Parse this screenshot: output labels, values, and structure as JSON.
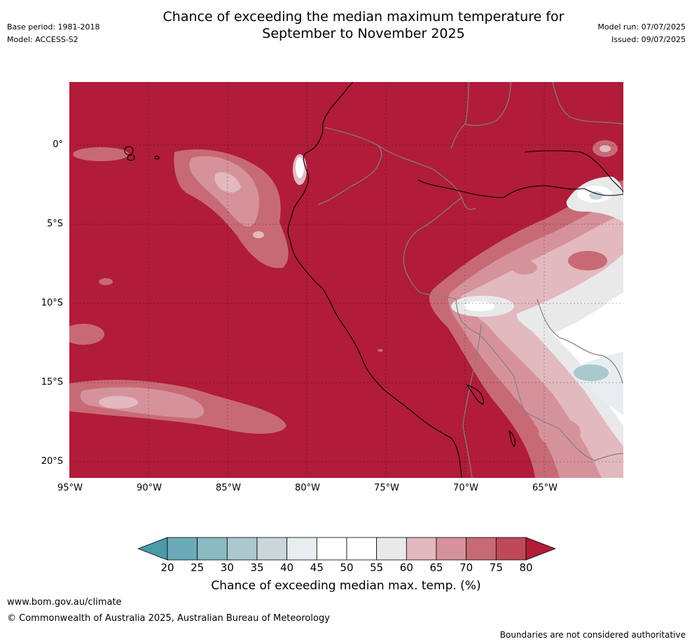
{
  "title_line1": "Chance of exceeding the median maximum temperature for",
  "title_line2": "September to November 2025",
  "meta_left": {
    "base_period": "Base period: 1981-2018",
    "model": "Model: ACCESS-S2"
  },
  "meta_right": {
    "model_run": "Model run: 07/07/2025",
    "issued": "Issued: 09/07/2025"
  },
  "lat_ticks": [
    "0°",
    "5°S",
    "10°S",
    "15°S",
    "20°S"
  ],
  "lon_ticks": [
    "95°W",
    "90°W",
    "85°W",
    "80°W",
    "75°W",
    "70°W",
    "65°W"
  ],
  "colorbar": {
    "ticks": [
      "20",
      "25",
      "30",
      "35",
      "40",
      "45",
      "50",
      "55",
      "60",
      "65",
      "70",
      "75",
      "80"
    ],
    "title": "Chance of exceeding median max. temp. (%)",
    "colors": [
      "#4a9aa8",
      "#6aabb7",
      "#8cbac2",
      "#abc8cd",
      "#c9d7da",
      "#e8eef0",
      "#ffffff",
      "#ffffff",
      "#e9e9ea",
      "#e2b9bf",
      "#d6929b",
      "#c86a76",
      "#be4a58",
      "#b01c3a"
    ]
  },
  "footer": {
    "url": "www.bom.gov.au/climate",
    "copyright": "© Commonwealth of Australia 2025, Australian Bureau of Meteorology",
    "disclaimer": "Boundaries are not considered authoritative"
  }
}
